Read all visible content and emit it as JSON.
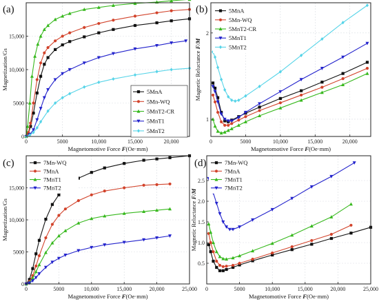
{
  "chart_data": [
    {
      "panel": "(a)",
      "type": "line",
      "xlabel_pre": "Magnetomotive Force ",
      "xlabel_var": "F",
      "xlabel_post": "(Oe·mm)",
      "ylabel": "Magnetization/Gs",
      "xlim": [
        0,
        22500
      ],
      "ylim": [
        0,
        20000
      ],
      "xticks": [
        0,
        5000,
        10000,
        15000,
        20000
      ],
      "xtick_labels": [
        "0",
        "5000",
        "10,000",
        "15,000",
        "20,000"
      ],
      "yticks": [
        0,
        5000,
        10000,
        15000
      ],
      "ytick_labels": [
        "0",
        "5000",
        "10,000",
        "15,000"
      ],
      "grid": true,
      "legend_position": "bottom-right",
      "series": [
        {
          "name": "5MnA",
          "color": "#111111",
          "marker": "square",
          "x": [
            0,
            300,
            600,
            1000,
            1500,
            2000,
            2500,
            3000,
            4000,
            5000,
            6000,
            8000,
            10000,
            12000,
            15000,
            18000,
            20000,
            22500
          ],
          "y": [
            0,
            500,
            1500,
            3500,
            6500,
            9000,
            10800,
            11800,
            13000,
            13700,
            14200,
            14900,
            15500,
            16000,
            16600,
            17000,
            17300,
            17600
          ]
        },
        {
          "name": "5Mn-WQ",
          "color": "#d2432b",
          "marker": "circle",
          "x": [
            0,
            300,
            600,
            1000,
            1500,
            2000,
            2500,
            3000,
            4000,
            5000,
            6000,
            8000,
            10000,
            12000,
            15000,
            18000,
            20000,
            22500
          ],
          "y": [
            0,
            600,
            2000,
            5000,
            8500,
            11000,
            12500,
            13300,
            14300,
            15000,
            15500,
            16300,
            16900,
            17400,
            18000,
            18500,
            18800,
            19000
          ]
        },
        {
          "name": "5MnT2-CR",
          "color": "#36b81c",
          "marker": "triangle-up",
          "x": [
            0,
            200,
            500,
            800,
            1200,
            1600,
            2000,
            2500,
            3000,
            4000,
            5000,
            6000,
            8000,
            10000,
            12000,
            15000,
            18000,
            20000,
            22500
          ],
          "y": [
            0,
            1500,
            5000,
            9000,
            12000,
            13800,
            15000,
            16000,
            16600,
            17500,
            18000,
            18400,
            19000,
            19300,
            19600,
            19900,
            20100,
            20300,
            20500
          ]
        },
        {
          "name": "5MnT1",
          "color": "#2222cc",
          "marker": "triangle-down",
          "x": [
            0,
            500,
            1000,
            1500,
            2000,
            2500,
            3000,
            4000,
            5000,
            6000,
            8000,
            10000,
            12000,
            15000,
            18000,
            20000,
            22000
          ],
          "y": [
            0,
            300,
            1000,
            2500,
            4200,
            5800,
            7000,
            8500,
            9400,
            10000,
            11000,
            11800,
            12400,
            13100,
            13600,
            14000,
            14300
          ]
        },
        {
          "name": "5MnT2",
          "color": "#56d4e8",
          "marker": "diamond",
          "x": [
            0,
            500,
            1000,
            1500,
            2000,
            3000,
            4000,
            5000,
            6000,
            8000,
            10000,
            12000,
            15000,
            18000,
            20000,
            22500
          ],
          "y": [
            0,
            200,
            600,
            1300,
            2200,
            3800,
            5000,
            5800,
            6400,
            7400,
            8100,
            8600,
            9200,
            9700,
            10000,
            10200
          ]
        }
      ]
    },
    {
      "panel": "(b)",
      "type": "line",
      "xlabel_pre": "Magnetomotive Force ",
      "xlabel_var": "F",
      "xlabel_post": "(Oe·mm)",
      "ylabel_pre": "Magnetic Reluctance ",
      "ylabel_var": "F/M",
      "xlim": [
        0,
        23000
      ],
      "ylim": [
        0.8,
        2.35
      ],
      "xticks": [
        0,
        5000,
        10000,
        15000,
        20000
      ],
      "xtick_labels": [
        "0",
        "5000",
        "10,000",
        "15,000",
        "20,000"
      ],
      "yticks": [
        1,
        2
      ],
      "ytick_labels": [
        "1",
        "2"
      ],
      "grid": true,
      "legend_position": "top-left",
      "series": [
        {
          "name": "5MnA",
          "color": "#111111",
          "marker": "square",
          "x": [
            300,
            600,
            1000,
            1500,
            2000,
            2500,
            3000,
            4000,
            5000,
            7000,
            10000,
            13000,
            16000,
            19000,
            22500
          ],
          "y": [
            1.42,
            1.36,
            1.25,
            1.08,
            0.98,
            0.97,
            0.99,
            1.03,
            1.07,
            1.14,
            1.24,
            1.33,
            1.43,
            1.53,
            1.66
          ]
        },
        {
          "name": "5Mn-WQ",
          "color": "#d2432b",
          "marker": "circle",
          "x": [
            300,
            600,
            1000,
            1500,
            2000,
            2500,
            3000,
            4000,
            5000,
            7000,
            10000,
            13000,
            16000,
            19000,
            22500
          ],
          "y": [
            1.28,
            1.2,
            1.08,
            0.97,
            0.93,
            0.93,
            0.95,
            0.99,
            1.03,
            1.1,
            1.19,
            1.28,
            1.37,
            1.47,
            1.59
          ]
        },
        {
          "name": "5MnT2-CR",
          "color": "#36b81c",
          "marker": "triangle-up",
          "x": [
            300,
            600,
            1000,
            1500,
            2000,
            2500,
            3000,
            4000,
            5000,
            7000,
            10000,
            13000,
            16000,
            19000,
            22500
          ],
          "y": [
            1.0,
            0.92,
            0.86,
            0.84,
            0.85,
            0.87,
            0.89,
            0.93,
            0.97,
            1.04,
            1.13,
            1.22,
            1.31,
            1.4,
            1.53
          ]
        },
        {
          "name": "5MnT1",
          "color": "#2222cc",
          "marker": "triangle-down",
          "x": [
            300,
            600,
            1000,
            1500,
            2000,
            2500,
            3000,
            4000,
            5000,
            7000,
            10000,
            13000,
            16000,
            19000,
            22500
          ],
          "y": [
            1.38,
            1.32,
            1.2,
            1.06,
            1.0,
            0.98,
            0.98,
            1.02,
            1.08,
            1.18,
            1.32,
            1.46,
            1.59,
            1.72,
            1.88
          ]
        },
        {
          "name": "5MnT2",
          "color": "#56d4e8",
          "marker": "diamond",
          "x": [
            300,
            600,
            1000,
            1500,
            2000,
            2500,
            3000,
            3500,
            4000,
            5000,
            7000,
            10000,
            13000,
            16000,
            19000,
            22500
          ],
          "y": [
            1.78,
            1.72,
            1.6,
            1.46,
            1.34,
            1.26,
            1.22,
            1.21,
            1.22,
            1.27,
            1.38,
            1.55,
            1.74,
            1.93,
            2.12,
            2.32
          ]
        }
      ]
    },
    {
      "panel": "(c)",
      "type": "line",
      "xlabel_pre": "Magnetomotive Force ",
      "xlabel_var": "F",
      "xlabel_post": "(Oe·mm)",
      "ylabel": "Magnetization/Gs",
      "xlim": [
        0,
        25000
      ],
      "ylim": [
        0,
        20000
      ],
      "xticks": [
        0,
        5000,
        10000,
        15000,
        20000,
        25000
      ],
      "xtick_labels": [
        "0",
        "5000",
        "10,000",
        "15,000",
        "20,000",
        "25,000"
      ],
      "yticks": [
        0,
        5000,
        10000,
        15000
      ],
      "ytick_labels": [
        "0",
        "5000",
        "10,000",
        "15,000"
      ],
      "grid": true,
      "legend_position": "top-left",
      "series": [
        {
          "name": "7Mn-WQ",
          "color": "#111111",
          "marker": "square",
          "x": [
            0,
            500,
            1000,
            1500,
            2000,
            3000,
            4000,
            5000,
            6000,
            8000,
            10000,
            12000,
            15000,
            18000,
            20000,
            22000,
            25000
          ],
          "y": [
            0,
            700,
            2400,
            4700,
            6800,
            10100,
            12400,
            13900,
            15000,
            16500,
            17400,
            18100,
            18800,
            19300,
            19500,
            19700,
            20000
          ]
        },
        {
          "name": "7MnA",
          "color": "#d2432b",
          "marker": "circle",
          "x": [
            0,
            500,
            1000,
            1500,
            2000,
            3000,
            4000,
            5000,
            6000,
            8000,
            10000,
            12000,
            15000,
            18000,
            20000,
            22000
          ],
          "y": [
            0,
            400,
            1300,
            2800,
            4400,
            7200,
            9300,
            10700,
            11700,
            13000,
            13900,
            14500,
            15000,
            15400,
            15500,
            15600
          ]
        },
        {
          "name": "7MnT1",
          "color": "#36b81c",
          "marker": "triangle-up",
          "x": [
            0,
            500,
            1000,
            1500,
            2000,
            3000,
            4000,
            5000,
            6000,
            8000,
            10000,
            12000,
            15000,
            18000,
            20000,
            22000
          ],
          "y": [
            0,
            250,
            900,
            1900,
            3000,
            4900,
            6400,
            7500,
            8300,
            9500,
            10200,
            10600,
            11000,
            11300,
            11500,
            11700
          ]
        },
        {
          "name": "7MnT2",
          "color": "#2222cc",
          "marker": "triangle-down",
          "x": [
            0,
            500,
            1000,
            1500,
            2000,
            3000,
            4000,
            5000,
            6000,
            8000,
            10000,
            12000,
            15000,
            18000,
            20000,
            22000
          ],
          "y": [
            0,
            150,
            500,
            1000,
            1600,
            2600,
            3400,
            4000,
            4500,
            5200,
            5700,
            6100,
            6500,
            6900,
            7200,
            7500
          ]
        }
      ]
    },
    {
      "panel": "(d)",
      "type": "line",
      "xlabel_pre": "Magnetomotive Force ",
      "xlabel_var": "F",
      "xlabel_post": "(Oe·mm)",
      "ylabel_pre": "Magnetic Reluctance ",
      "ylabel_var": "F/M",
      "xlim": [
        0,
        25000
      ],
      "ylim": [
        0,
        3.1
      ],
      "xticks": [
        0,
        5000,
        10000,
        15000,
        20000,
        25000
      ],
      "xtick_labels": [
        "0",
        "5000",
        "10,000",
        "15,000",
        "20,000",
        "25,000"
      ],
      "yticks": [
        0.5,
        1.0,
        1.5,
        2.0,
        2.5
      ],
      "ytick_labels": [
        "0.5",
        "1.0",
        "1.5",
        "2.0",
        "2.5"
      ],
      "grid": true,
      "legend_position": "top-left",
      "series": [
        {
          "name": "7Mn-WQ",
          "color": "#111111",
          "marker": "square",
          "x": [
            300,
            600,
            1000,
            1500,
            2000,
            2500,
            3000,
            4000,
            5000,
            7000,
            10000,
            13000,
            16000,
            19000,
            22000,
            25000
          ],
          "y": [
            0.95,
            0.78,
            0.55,
            0.4,
            0.32,
            0.32,
            0.35,
            0.4,
            0.46,
            0.56,
            0.7,
            0.83,
            0.96,
            1.1,
            1.23,
            1.37
          ]
        },
        {
          "name": "7MnA",
          "color": "#d2432b",
          "marker": "circle",
          "x": [
            300,
            600,
            1000,
            1500,
            2000,
            2500,
            3000,
            4000,
            5000,
            7000,
            10000,
            13000,
            16000,
            19000,
            22000
          ],
          "y": [
            1.22,
            1.0,
            0.78,
            0.55,
            0.45,
            0.42,
            0.43,
            0.45,
            0.5,
            0.6,
            0.75,
            0.9,
            1.05,
            1.2,
            1.42
          ]
        },
        {
          "name": "7MnT1",
          "color": "#36b81c",
          "marker": "triangle-up",
          "x": [
            300,
            600,
            1000,
            1500,
            2000,
            2500,
            3000,
            4000,
            5000,
            7000,
            10000,
            13000,
            16000,
            19000,
            22000
          ],
          "y": [
            1.45,
            1.25,
            1.0,
            0.78,
            0.66,
            0.61,
            0.6,
            0.63,
            0.68,
            0.8,
            0.98,
            1.18,
            1.4,
            1.62,
            1.93
          ]
        },
        {
          "name": "7MnT2",
          "color": "#2222cc",
          "marker": "triangle-down",
          "x": [
            300,
            600,
            1000,
            1500,
            2000,
            2500,
            3000,
            3500,
            4000,
            5000,
            7000,
            10000,
            13000,
            16000,
            19000,
            22500
          ],
          "y": [
            2.55,
            2.4,
            2.2,
            1.95,
            1.7,
            1.5,
            1.38,
            1.32,
            1.32,
            1.38,
            1.55,
            1.8,
            2.07,
            2.35,
            2.6,
            2.93
          ]
        }
      ]
    }
  ]
}
